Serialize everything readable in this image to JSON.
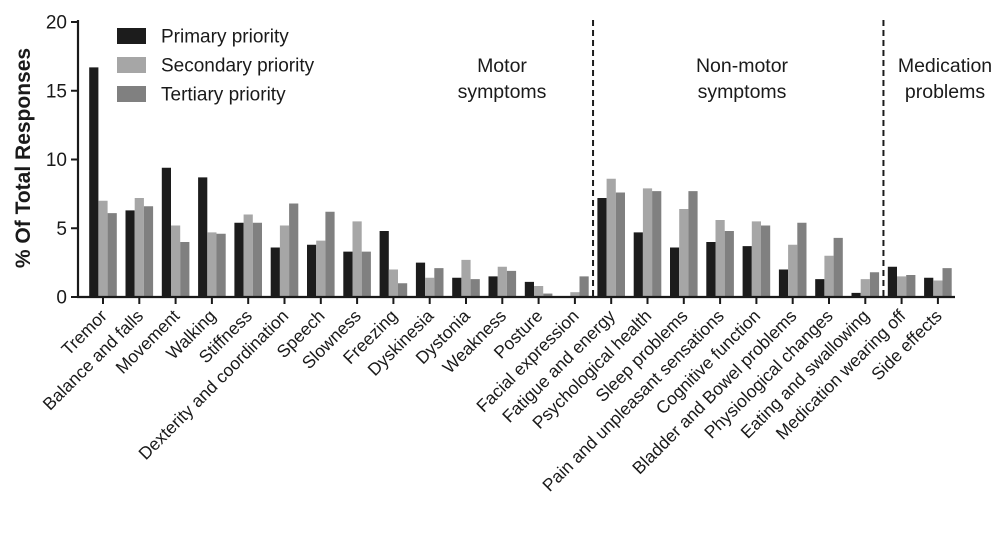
{
  "chart_data": {
    "type": "bar",
    "ylabel": "% Of Total Responses",
    "ylim": [
      0,
      20
    ],
    "yticks": [
      0,
      5,
      10,
      15,
      20
    ],
    "grid": false,
    "legend_position": "top-left",
    "categories": [
      "Tremor",
      "Balance and falls",
      "Movement",
      "Walking",
      "Stiffness",
      "Dexterity and coordination",
      "Speech",
      "Slowness",
      "Freezing",
      "Dyskinesia",
      "Dystonia",
      "Weakness",
      "Posture",
      "Facial expression",
      "Fatigue and energy",
      "Psychological health",
      "Sleep problems",
      "Pain and unpleasant sensations",
      "Cognitive function",
      "Bladder and Bowel problems",
      "Physiological changes",
      "Eating and swallowing",
      "Medication wearing off",
      "Side effects"
    ],
    "series": [
      {
        "name": "Primary priority",
        "color": "#1c1c1c",
        "values": [
          16.7,
          6.3,
          9.4,
          8.7,
          5.4,
          3.6,
          3.8,
          3.3,
          4.8,
          2.5,
          1.4,
          1.5,
          1.1,
          0.05,
          7.2,
          4.7,
          3.6,
          4.0,
          3.7,
          2.0,
          1.3,
          0.3,
          2.2,
          1.4
        ]
      },
      {
        "name": "Secondary priority",
        "color": "#a6a6a6",
        "values": [
          7.0,
          7.2,
          5.2,
          4.7,
          6.0,
          5.2,
          4.1,
          5.5,
          2.0,
          1.4,
          2.7,
          2.2,
          0.8,
          0.35,
          8.6,
          7.9,
          6.4,
          5.6,
          5.5,
          3.8,
          3.0,
          1.3,
          1.5,
          1.2
        ]
      },
      {
        "name": "Tertiary priority",
        "color": "#808080",
        "values": [
          6.1,
          6.6,
          4.0,
          4.6,
          5.4,
          6.8,
          6.2,
          3.3,
          1.0,
          2.1,
          1.3,
          1.9,
          0.25,
          1.5,
          7.6,
          7.7,
          7.7,
          4.8,
          5.2,
          5.4,
          4.3,
          1.8,
          1.6,
          2.1
        ]
      }
    ],
    "sections": [
      {
        "label_lines": [
          "Motor",
          "symptoms"
        ],
        "after_index": 13
      },
      {
        "label_lines": [
          "Non-motor",
          "symptoms"
        ],
        "after_index": 21
      },
      {
        "label_lines": [
          "Medication",
          "problems"
        ],
        "after_index": 23
      }
    ]
  }
}
